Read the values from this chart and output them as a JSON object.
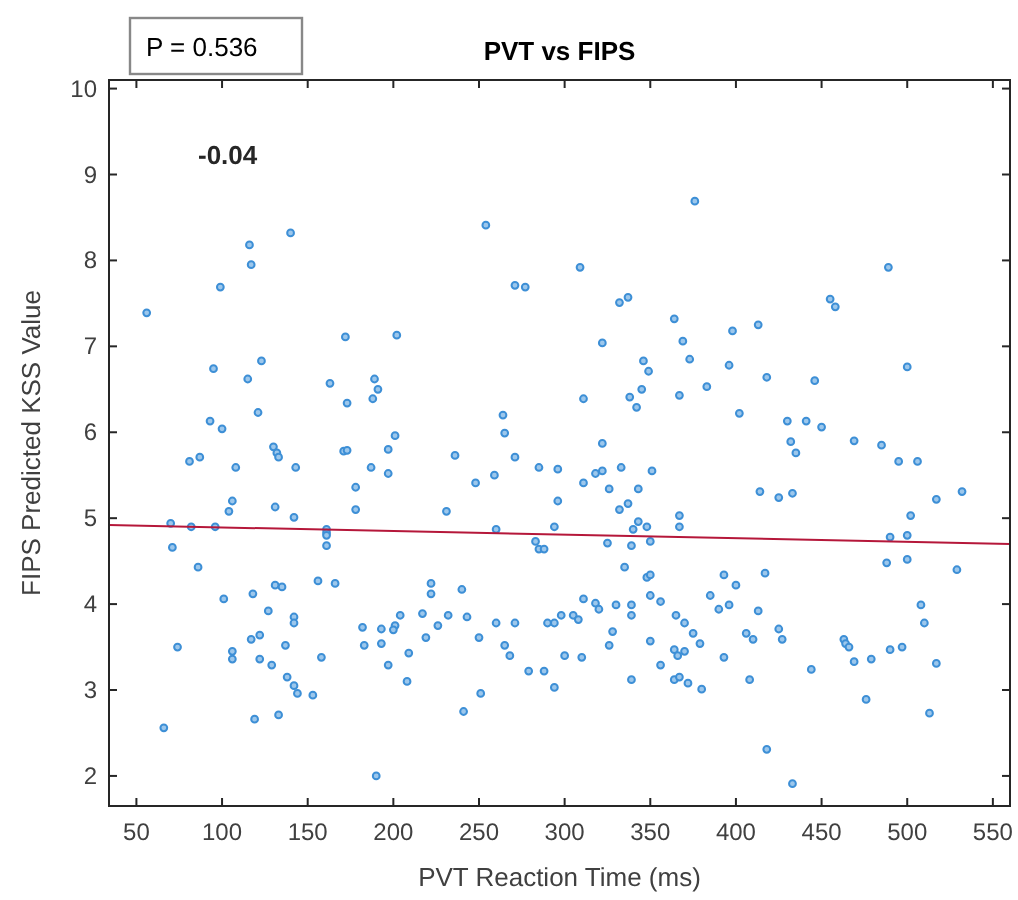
{
  "chart_data": {
    "type": "scatter",
    "title": "PVT vs FIPS",
    "xlabel": "PVT Reaction Time (ms)",
    "ylabel": "FIPS Predicted KSS Value",
    "annotations": [
      "P = 0.536",
      "-0.04"
    ],
    "xlim": [
      34,
      560
    ],
    "xticks": [
      50,
      100,
      150,
      200,
      250,
      300,
      350,
      400,
      450,
      500,
      550
    ],
    "ylim": [
      1.65,
      10.1
    ],
    "yticks": [
      2,
      3,
      4,
      5,
      6,
      7,
      8,
      9,
      10
    ],
    "grid": false,
    "series": [
      {
        "marker": "circle",
        "color": "#3d8fd6",
        "x": [
          56,
          116,
          140,
          117,
          99,
          254,
          271,
          277,
          172,
          202,
          95,
          123,
          115,
          163,
          189,
          191,
          173,
          188,
          121,
          93,
          100,
          264,
          265,
          130,
          132,
          133,
          81,
          87,
          108,
          143,
          171,
          173,
          201,
          197,
          187,
          197,
          236,
          271,
          285,
          296,
          248,
          259,
          178,
          106,
          104,
          131,
          142,
          178,
          231,
          296,
          70,
          82,
          96,
          161,
          161,
          260,
          294,
          71,
          86,
          161,
          161,
          283,
          285,
          288,
          101,
          118,
          131,
          135,
          156,
          166,
          222,
          222,
          240,
          127,
          142,
          142,
          182,
          193,
          201,
          200,
          204,
          217,
          226,
          232,
          243,
          260,
          271,
          290,
          294,
          74,
          106,
          106,
          117,
          122,
          137,
          122,
          129,
          158,
          183,
          193,
          209,
          219,
          250,
          265,
          268,
          279,
          288,
          294,
          138,
          142,
          144,
          153,
          197,
          208,
          251,
          241,
          119,
          133,
          66,
          190,
          376,
          309,
          489,
          337,
          332,
          455,
          458,
          364,
          398,
          413,
          322,
          369,
          346,
          349,
          373,
          396,
          500,
          418,
          446,
          311,
          338,
          345,
          342,
          367,
          383,
          402,
          430,
          441,
          450,
          322,
          432,
          435,
          469,
          485,
          495,
          506,
          318,
          322,
          333,
          351,
          311,
          326,
          343,
          337,
          332,
          414,
          425,
          433,
          517,
          532,
          502,
          367,
          343,
          340,
          348,
          367,
          490,
          500,
          325,
          339,
          350,
          488,
          500,
          529,
          335,
          348,
          350,
          393,
          400,
          417,
          350,
          356,
          385,
          311,
          318,
          320,
          330,
          339,
          339,
          396,
          390,
          413,
          508,
          510,
          298,
          305,
          308,
          365,
          370,
          375,
          379,
          328,
          326,
          350,
          406,
          410,
          425,
          427,
          463,
          464,
          466,
          490,
          497,
          364,
          366,
          370,
          393,
          300,
          310,
          356,
          469,
          479,
          517,
          339,
          364,
          367,
          372,
          380,
          408,
          444,
          476,
          513,
          418,
          433
        ],
        "values": [
          7.39,
          8.18,
          8.32,
          7.95,
          7.69,
          8.41,
          7.71,
          7.69,
          7.11,
          7.13,
          6.74,
          6.83,
          6.62,
          6.57,
          6.62,
          6.5,
          6.34,
          6.39,
          6.23,
          6.13,
          6.04,
          6.2,
          5.99,
          5.83,
          5.76,
          5.71,
          5.66,
          5.71,
          5.59,
          5.59,
          5.78,
          5.79,
          5.96,
          5.8,
          5.59,
          5.52,
          5.73,
          5.71,
          5.59,
          5.57,
          5.41,
          5.5,
          5.36,
          5.2,
          5.08,
          5.13,
          5.01,
          5.1,
          5.08,
          5.2,
          4.94,
          4.9,
          4.9,
          4.87,
          4.83,
          4.87,
          4.9,
          4.66,
          4.43,
          4.8,
          4.68,
          4.73,
          4.64,
          4.64,
          4.06,
          4.12,
          4.22,
          4.2,
          4.27,
          4.24,
          4.24,
          4.12,
          4.17,
          3.92,
          3.85,
          3.78,
          3.73,
          3.71,
          3.75,
          3.7,
          3.87,
          3.89,
          3.75,
          3.87,
          3.85,
          3.78,
          3.78,
          3.78,
          3.78,
          3.5,
          3.45,
          3.36,
          3.59,
          3.64,
          3.52,
          3.36,
          3.29,
          3.38,
          3.52,
          3.54,
          3.43,
          3.61,
          3.61,
          3.52,
          3.4,
          3.22,
          3.22,
          3.03,
          3.15,
          3.05,
          2.96,
          2.94,
          3.29,
          3.1,
          2.96,
          2.75,
          2.66,
          2.71,
          2.56,
          2.0,
          8.69,
          7.92,
          7.92,
          7.57,
          7.51,
          7.55,
          7.46,
          7.32,
          7.18,
          7.25,
          7.04,
          7.06,
          6.83,
          6.71,
          6.85,
          6.78,
          6.76,
          6.64,
          6.6,
          6.39,
          6.41,
          6.5,
          6.29,
          6.43,
          6.53,
          6.22,
          6.13,
          6.13,
          6.06,
          5.87,
          5.89,
          5.76,
          5.9,
          5.85,
          5.66,
          5.66,
          5.52,
          5.55,
          5.59,
          5.55,
          5.41,
          5.34,
          5.34,
          5.17,
          5.1,
          5.31,
          5.24,
          5.29,
          5.22,
          5.31,
          5.03,
          5.03,
          4.96,
          4.87,
          4.9,
          4.9,
          4.78,
          4.8,
          4.71,
          4.68,
          4.73,
          4.48,
          4.52,
          4.4,
          4.43,
          4.31,
          4.34,
          4.34,
          4.22,
          4.36,
          4.1,
          4.03,
          4.1,
          4.06,
          4.01,
          3.94,
          3.99,
          3.99,
          3.87,
          3.99,
          3.94,
          3.92,
          3.99,
          3.78,
          3.87,
          3.87,
          3.82,
          3.87,
          3.78,
          3.66,
          3.54,
          3.68,
          3.52,
          3.57,
          3.66,
          3.59,
          3.71,
          3.59,
          3.59,
          3.54,
          3.5,
          3.47,
          3.5,
          3.47,
          3.4,
          3.45,
          3.38,
          3.4,
          3.38,
          3.29,
          3.33,
          3.36,
          3.31,
          3.12,
          3.12,
          3.15,
          3.08,
          3.01,
          3.12,
          3.24,
          2.89,
          2.73,
          2.31,
          1.91
        ]
      },
      {
        "type": "line",
        "color": "#b5173a",
        "x": [
          34,
          560
        ],
        "values": [
          4.92,
          4.7
        ]
      }
    ]
  }
}
